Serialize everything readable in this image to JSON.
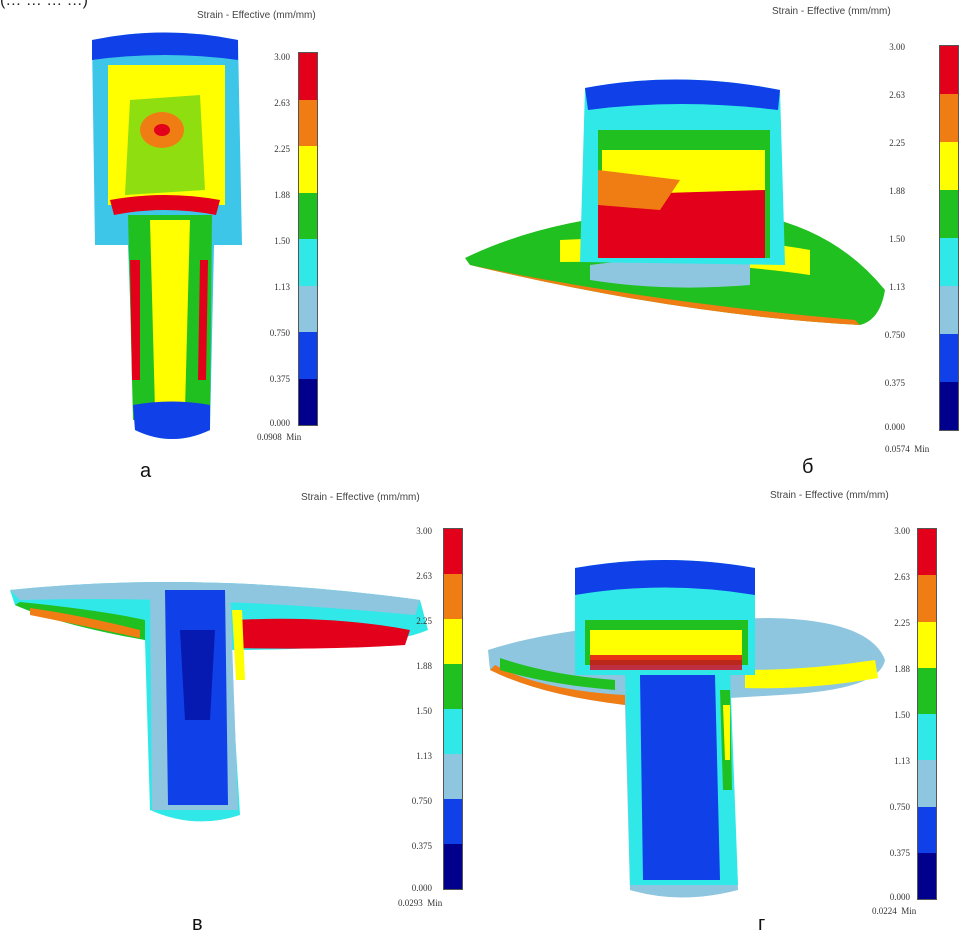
{
  "top_caption": "(… … … …)",
  "legend": {
    "title": "Strain - Effective (mm/mm)",
    "ticks": [
      "3.00",
      "2.63",
      "2.25",
      "1.88",
      "1.50",
      "1.13",
      "0.750",
      "0.375",
      "0.000"
    ],
    "min_label": "Min",
    "colors": [
      "#e2001a",
      "#f07d14",
      "#ffff00",
      "#1fc01f",
      "#30e8e8",
      "#8ec6e0",
      "#1040e8",
      "#00008c"
    ]
  },
  "panels": [
    {
      "letter": "а",
      "min_value": "0.0908"
    },
    {
      "letter": "б",
      "min_value": "0.0574"
    },
    {
      "letter": "в",
      "min_value": "0.0293"
    },
    {
      "letter": "г",
      "min_value": "0.0224"
    }
  ]
}
